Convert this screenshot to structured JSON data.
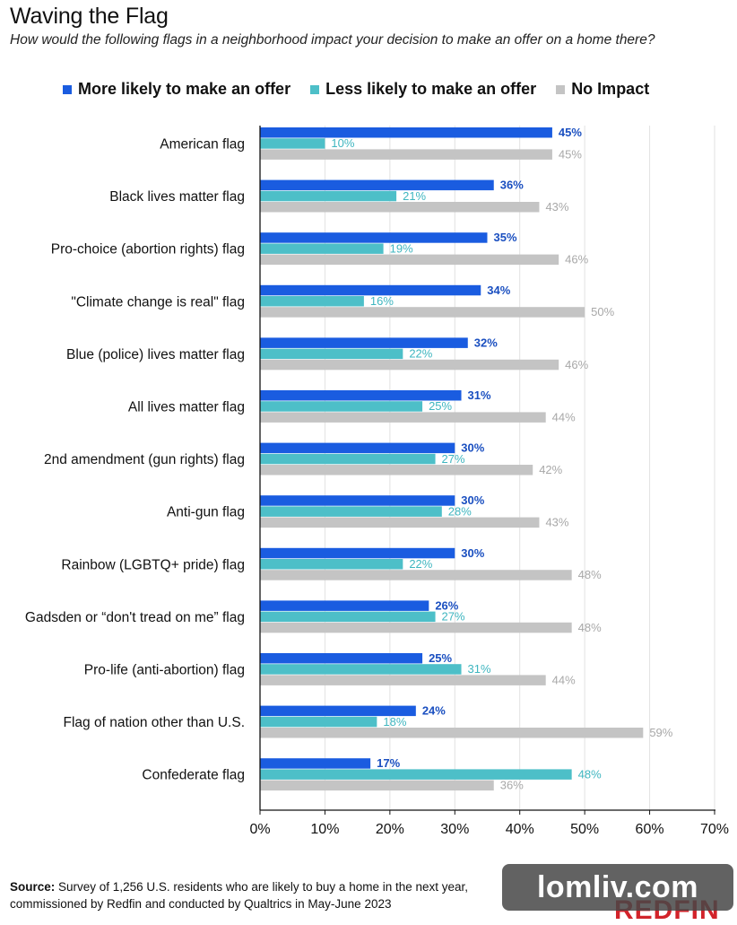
{
  "title": "Waving the Flag",
  "subtitle": "How would the following flags in a neighborhood impact your decision to make an offer on a home there?",
  "legend": [
    {
      "label": "More likely to make an offer",
      "color": "#1a5ce0"
    },
    {
      "label": "Less likely to make an offer",
      "color": "#4dbfc8"
    },
    {
      "label": "No Impact",
      "color": "#c4c4c4"
    }
  ],
  "chart_data": {
    "type": "bar",
    "orientation": "horizontal",
    "categories": [
      "American flag",
      "Black lives matter flag",
      "Pro-choice (abortion rights) flag",
      "\"Climate change is real\" flag",
      "Blue (police) lives matter flag",
      "All lives matter flag",
      "2nd amendment (gun rights) flag",
      "Anti-gun flag",
      "Rainbow (LGBTQ+ pride) flag",
      "Gadsden or “don't tread on me” flag",
      "Pro-life (anti-abortion) flag",
      "Flag of nation other than U.S.",
      "Confederate flag"
    ],
    "series": [
      {
        "name": "More likely to make an offer",
        "color": "#1a5ce0",
        "label_color": "#1a4fc0",
        "values": [
          45,
          36,
          35,
          34,
          32,
          31,
          30,
          30,
          30,
          26,
          25,
          24,
          17
        ]
      },
      {
        "name": "Less likely to make an offer",
        "color": "#4dbfc8",
        "label_color": "#3fb6c0",
        "values": [
          10,
          21,
          19,
          16,
          22,
          25,
          27,
          28,
          22,
          27,
          31,
          18,
          48
        ]
      },
      {
        "name": "No Impact",
        "color": "#c4c4c4",
        "label_color": "#a8a8a8",
        "values": [
          45,
          43,
          46,
          50,
          46,
          44,
          42,
          43,
          48,
          48,
          44,
          59,
          36
        ]
      }
    ],
    "xlim": [
      0,
      70
    ],
    "xticks": [
      "0%",
      "10%",
      "20%",
      "30%",
      "40%",
      "50%",
      "60%",
      "70%"
    ],
    "value_suffix": "%",
    "grid": true
  },
  "source": {
    "label": "Source:",
    "line1": "Survey of 1,256 U.S. residents who are likely to buy a home in the next year,",
    "line2": "commissioned by Redfin and conducted by Qualtrics in May-June 2023"
  },
  "watermark": "lomliv.com",
  "brand": "REDFIN"
}
